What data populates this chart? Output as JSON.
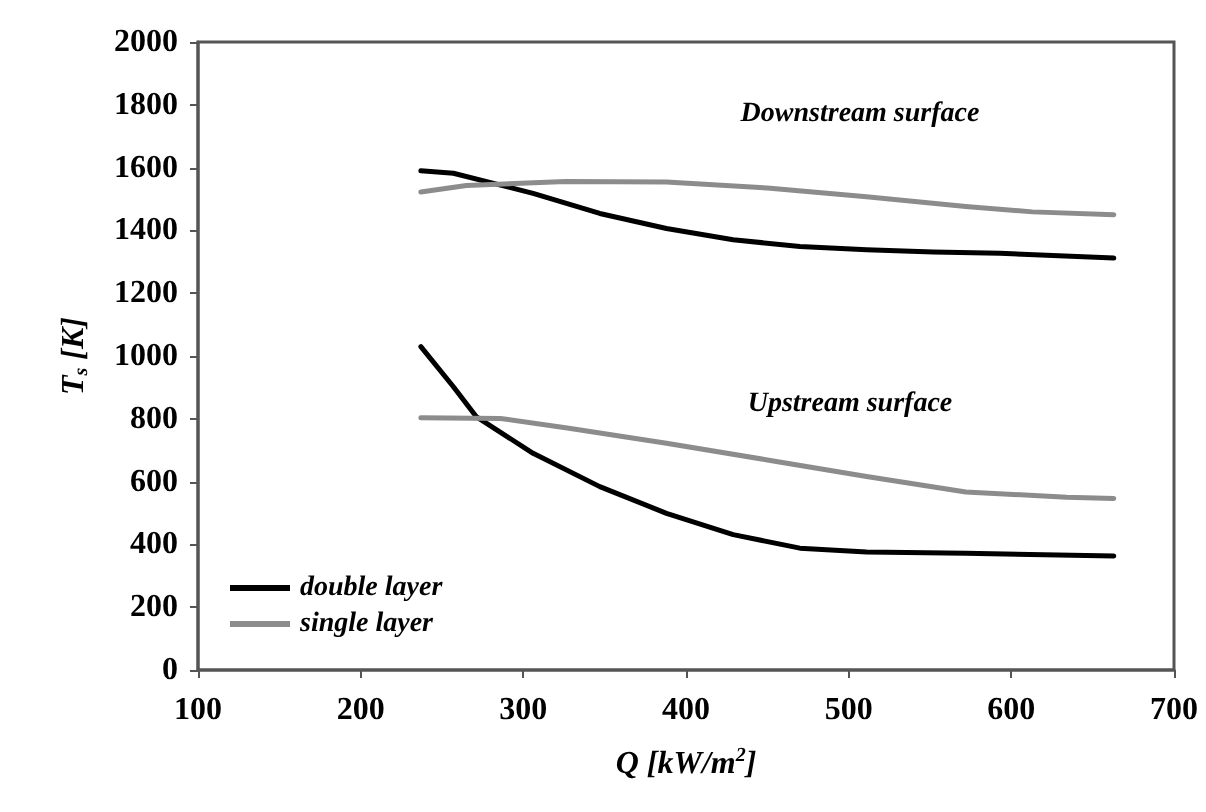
{
  "chart_data": {
    "type": "line",
    "xlabel": "Q [kW/m$^{2}$]",
    "ylabel": "T$_{s}$ [K]",
    "xlim": [
      100,
      700
    ],
    "xticks": [
      100,
      200,
      300,
      400,
      500,
      600,
      700
    ],
    "ylim": [
      0,
      2000
    ],
    "yticks": [
      0,
      200,
      400,
      600,
      800,
      1000,
      1200,
      1400,
      1600,
      1800,
      2000
    ],
    "grid": false,
    "legend": "bottom left",
    "marker": "none",
    "line_style": "solid",
    "series": [
      {
        "name": "double layer",
        "color": "#000000",
        "x": [
          237,
          257,
          271,
          306,
          347,
          388,
          429,
          470,
          511,
          572,
          663
        ],
        "values": [
          1030,
          902,
          807,
          690,
          584,
          499,
          431,
          388,
          376,
          372,
          363
        ]
      },
      {
        "name": "single layer",
        "color": "#8c8c8c",
        "x": [
          237,
          286,
          327,
          388,
          450,
          511,
          572,
          634,
          663
        ],
        "values": [
          803,
          801,
          771,
          722,
          669,
          616,
          567,
          550,
          546
        ]
      },
      {
        "color": "#000000",
        "x": [
          237,
          257,
          306,
          347,
          388,
          429,
          470,
          511,
          552,
          593,
          663
        ],
        "values": [
          1590,
          1582,
          1518,
          1454,
          1406,
          1370,
          1349,
          1338,
          1331,
          1327,
          1312
        ]
      },
      {
        "color": "#8c8c8c",
        "x": [
          237,
          265,
          326,
          388,
          450,
          511,
          572,
          613,
          663
        ],
        "values": [
          1522,
          1543,
          1556,
          1554,
          1535,
          1507,
          1476,
          1459,
          1450
        ]
      }
    ],
    "annotations": [
      "Downstream surface",
      "Upstream surface"
    ]
  }
}
